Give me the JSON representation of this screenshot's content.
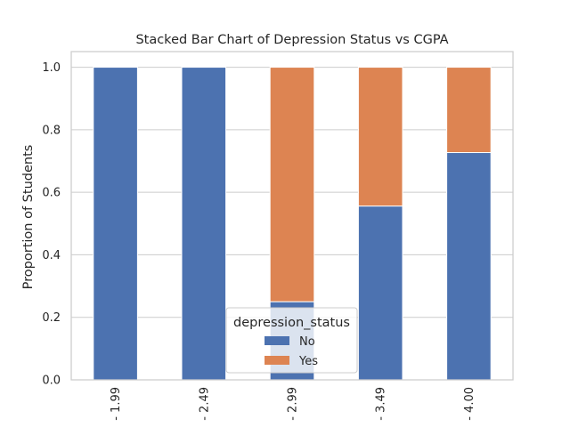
{
  "chart_data": {
    "type": "bar",
    "stacked": true,
    "title": "Stacked Bar Chart of Depression Status vs CGPA",
    "xlabel": "",
    "ylabel": "Proportion of Students",
    "categories": [
      "- 1.99",
      "- 2.49",
      "- 2.99",
      "- 3.49",
      "- 4.00"
    ],
    "series": [
      {
        "name": "No",
        "values": [
          1.0,
          1.0,
          0.25,
          0.556,
          0.727
        ],
        "color": "#4c72b0"
      },
      {
        "name": "Yes",
        "values": [
          0.0,
          0.0,
          0.75,
          0.444,
          0.273
        ],
        "color": "#dd8452"
      }
    ],
    "ylim": [
      0,
      1.05
    ],
    "yticks": [
      0.0,
      0.2,
      0.4,
      0.6,
      0.8,
      1.0
    ],
    "ytick_labels": [
      "0.0",
      "0.2",
      "0.4",
      "0.6",
      "0.8",
      "1.0"
    ],
    "grid": true,
    "legend": {
      "title": "depression_status",
      "position": "bottom-center"
    }
  }
}
